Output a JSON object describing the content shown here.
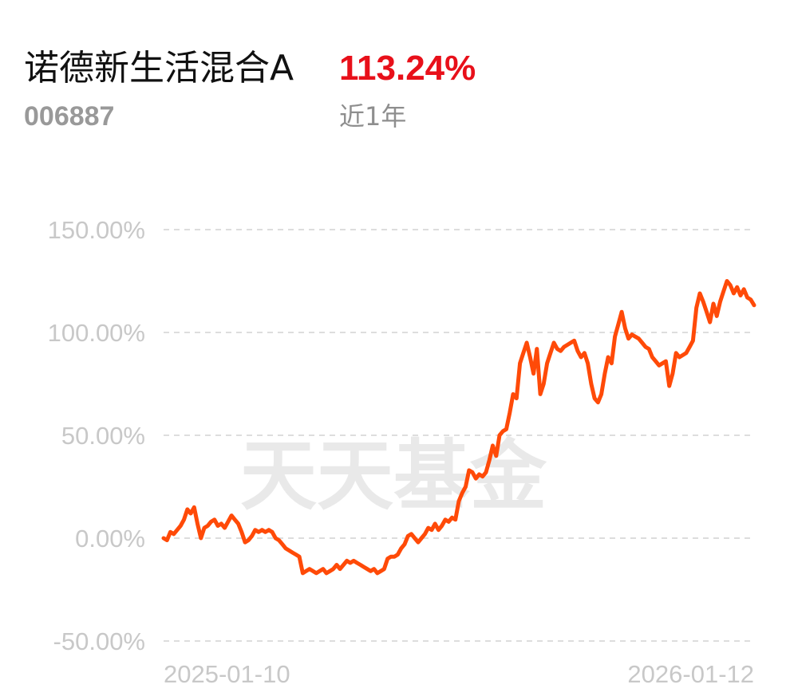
{
  "header": {
    "fund_name": "诺德新生活混合A",
    "return_value": "113.24%",
    "fund_code": "006887",
    "period_label": "近1年"
  },
  "watermark": "天天基金",
  "colors": {
    "line": "#ff4a08",
    "return_text": "#e8101a",
    "grid": "#dddddd",
    "tick_text": "#c8c8c8",
    "watermark": "#e9e9e9"
  },
  "chart_data": {
    "type": "line",
    "x_tick_labels": [
      "2025-01-10",
      "2026-01-12"
    ],
    "x_start": "2025-01-10",
    "x_end": "2026-01-12",
    "y_tick_labels": [
      "150.00%",
      "100.00%",
      "50.00%",
      "0.00%",
      "-50.00%"
    ],
    "y_ticks": [
      150,
      100,
      50,
      0,
      -50
    ],
    "ylim": [
      -50,
      150
    ],
    "grid": true,
    "series": [
      {
        "values": [
          0,
          -1,
          3,
          2,
          4,
          6,
          9,
          14,
          12,
          15,
          7,
          0,
          5,
          6,
          8,
          9,
          6,
          7,
          5,
          8,
          11,
          9,
          7,
          3,
          -2,
          -1,
          1,
          4,
          3,
          4,
          3,
          4,
          3,
          0,
          -1,
          -3,
          -5,
          -6,
          -7,
          -8,
          -9,
          -17,
          -16,
          -15,
          -16,
          -17,
          -16,
          -15,
          -17,
          -16,
          -15,
          -13,
          -15,
          -13,
          -11,
          -12,
          -11,
          -12,
          -13,
          -14,
          -15,
          -16,
          -15,
          -17,
          -16,
          -15,
          -10,
          -9,
          -9,
          -8,
          -5,
          -3,
          1,
          2,
          0,
          -2,
          0,
          2,
          5,
          4,
          7,
          4,
          6,
          9,
          8,
          10,
          9,
          18,
          22,
          25,
          33,
          32,
          29,
          31,
          30,
          32,
          38,
          45,
          40,
          50,
          52,
          53,
          61,
          70,
          68,
          85,
          90,
          95,
          88,
          80,
          92,
          70,
          75,
          85,
          90,
          95,
          92,
          91,
          93,
          94,
          95,
          96,
          91,
          88,
          90,
          85,
          75,
          68,
          66,
          70,
          80,
          88,
          85,
          98,
          104,
          110,
          102,
          97,
          99,
          98,
          97,
          95,
          93,
          92,
          88,
          86,
          84,
          85,
          86,
          74,
          80,
          90,
          88,
          89,
          90,
          93,
          96,
          112,
          119,
          115,
          110,
          105,
          114,
          108,
          115,
          120,
          125,
          123,
          119,
          122,
          118,
          121,
          117,
          116,
          113.24
        ]
      }
    ]
  }
}
